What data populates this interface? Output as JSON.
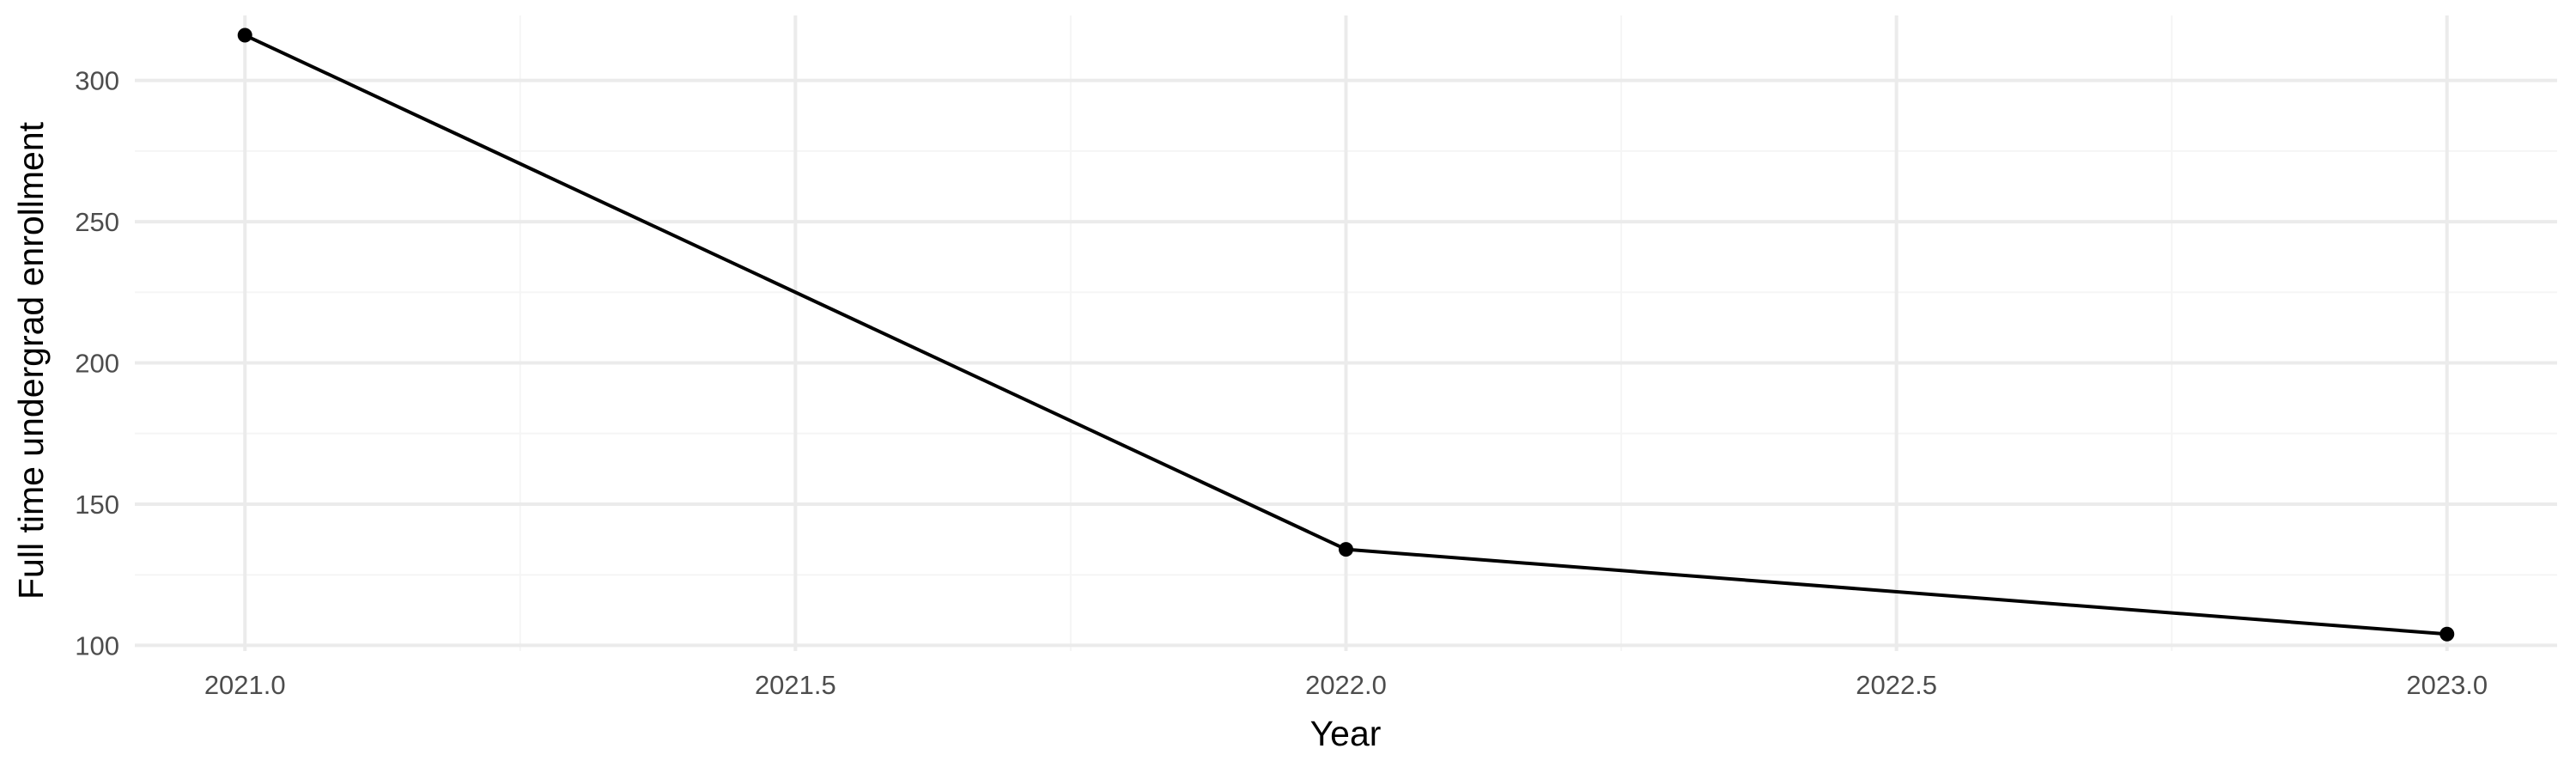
{
  "chart_data": {
    "type": "line",
    "title": "",
    "xlabel": "Year",
    "ylabel": "Full time undergrad enrollment",
    "xlim": [
      2020.9,
      2023.1
    ],
    "ylim": [
      98,
      323
    ],
    "x_ticks": [
      2021.0,
      2021.5,
      2022.0,
      2022.5,
      2023.0
    ],
    "x_tick_labels": [
      "2021.0",
      "2021.5",
      "2022.0",
      "2022.5",
      "2023.0"
    ],
    "y_ticks": [
      100,
      150,
      200,
      250,
      300
    ],
    "y_tick_labels": [
      "100",
      "150",
      "200",
      "250",
      "300"
    ],
    "x_minor_ticks": [
      2021.25,
      2021.75,
      2022.25,
      2022.75
    ],
    "y_minor_ticks": [
      125,
      175,
      225,
      275
    ],
    "grid": true,
    "legend": "none",
    "series": [
      {
        "x": [
          2021.0,
          2022.0,
          2023.0
        ],
        "values": [
          316,
          134,
          104
        ],
        "color": "#000000"
      }
    ],
    "colors": {
      "background": "#ffffff",
      "grid_major": "#ebebeb",
      "grid_minor": "#f5f5f5",
      "tick_text": "#4d4d4d",
      "title_text": "#000000"
    }
  }
}
